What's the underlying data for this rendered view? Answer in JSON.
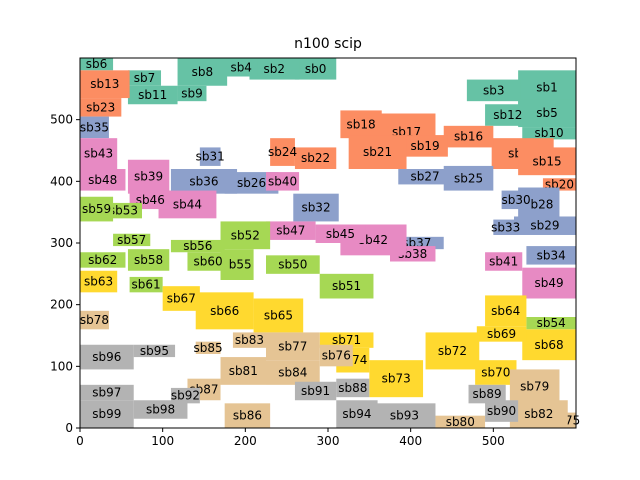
{
  "chart_data": {
    "type": "rectangle_packing",
    "title": "n100 scip",
    "xlabel": "",
    "ylabel": "",
    "xlim": [
      0,
      600
    ],
    "ylim": [
      0,
      600
    ],
    "xticks": [
      0,
      100,
      200,
      300,
      400,
      500
    ],
    "yticks": [
      0,
      100,
      200,
      300,
      400,
      500
    ],
    "grid": false,
    "colors": {
      "teal": "#66c2a5",
      "orange": "#fc8d62",
      "blue": "#8da0cb",
      "pink": "#e78ac3",
      "green": "#a6d854",
      "yellow": "#ffd92f",
      "tan": "#e5c494",
      "gray": "#b3b3b3"
    },
    "rects": [
      {
        "label": "sb0",
        "x": 260,
        "y": 565,
        "w": 50,
        "h": 35,
        "color": "teal"
      },
      {
        "label": "sb1",
        "x": 530,
        "y": 525,
        "w": 70,
        "h": 55,
        "color": "teal"
      },
      {
        "label": "sb2",
        "x": 205,
        "y": 565,
        "w": 60,
        "h": 35,
        "color": "teal"
      },
      {
        "label": "sb3",
        "x": 468,
        "y": 530,
        "w": 65,
        "h": 35,
        "color": "teal"
      },
      {
        "label": "sb4",
        "x": 175,
        "y": 570,
        "w": 40,
        "h": 30,
        "color": "teal"
      },
      {
        "label": "sb5",
        "x": 530,
        "y": 488,
        "w": 70,
        "h": 45,
        "color": "teal"
      },
      {
        "label": "sb6",
        "x": 0,
        "y": 580,
        "w": 40,
        "h": 20,
        "color": "teal"
      },
      {
        "label": "sb7",
        "x": 58,
        "y": 555,
        "w": 40,
        "h": 25,
        "color": "teal"
      },
      {
        "label": "sb8",
        "x": 118,
        "y": 555,
        "w": 60,
        "h": 45,
        "color": "teal"
      },
      {
        "label": "sb9",
        "x": 118,
        "y": 530,
        "w": 35,
        "h": 25,
        "color": "teal"
      },
      {
        "label": "sb10",
        "x": 535,
        "y": 468,
        "w": 65,
        "h": 20,
        "color": "teal"
      },
      {
        "label": "sb11",
        "x": 58,
        "y": 525,
        "w": 60,
        "h": 30,
        "color": "teal"
      },
      {
        "label": "sb12",
        "x": 490,
        "y": 490,
        "w": 55,
        "h": 35,
        "color": "teal"
      },
      {
        "label": "sb13",
        "x": 0,
        "y": 535,
        "w": 60,
        "h": 45,
        "color": "orange"
      },
      {
        "label": "sb14",
        "x": 498,
        "y": 420,
        "w": 75,
        "h": 50,
        "color": "orange"
      },
      {
        "label": "sb15",
        "x": 530,
        "y": 410,
        "w": 70,
        "h": 45,
        "color": "orange"
      },
      {
        "label": "sb16",
        "x": 440,
        "y": 455,
        "w": 60,
        "h": 35,
        "color": "orange"
      },
      {
        "label": "sb17",
        "x": 360,
        "y": 450,
        "w": 70,
        "h": 60,
        "color": "orange"
      },
      {
        "label": "sb18",
        "x": 315,
        "y": 470,
        "w": 50,
        "h": 45,
        "color": "orange"
      },
      {
        "label": "sb19",
        "x": 390,
        "y": 440,
        "w": 55,
        "h": 35,
        "color": "orange"
      },
      {
        "label": "sb20",
        "x": 560,
        "y": 385,
        "w": 40,
        "h": 20,
        "color": "orange"
      },
      {
        "label": "sb21",
        "x": 325,
        "y": 420,
        "w": 70,
        "h": 55,
        "color": "orange"
      },
      {
        "label": "sb22",
        "x": 260,
        "y": 420,
        "w": 50,
        "h": 35,
        "color": "orange"
      },
      {
        "label": "sb23",
        "x": 0,
        "y": 505,
        "w": 50,
        "h": 30,
        "color": "orange"
      },
      {
        "label": "sb24",
        "x": 230,
        "y": 425,
        "w": 30,
        "h": 45,
        "color": "orange"
      },
      {
        "label": "sb25",
        "x": 440,
        "y": 385,
        "w": 60,
        "h": 40,
        "color": "blue"
      },
      {
        "label": "sb26",
        "x": 175,
        "y": 380,
        "w": 65,
        "h": 35,
        "color": "blue"
      },
      {
        "label": "sb27",
        "x": 385,
        "y": 395,
        "w": 65,
        "h": 25,
        "color": "blue"
      },
      {
        "label": "sb28",
        "x": 530,
        "y": 335,
        "w": 50,
        "h": 55,
        "color": "blue"
      },
      {
        "label": "sb29",
        "x": 525,
        "y": 313,
        "w": 75,
        "h": 30,
        "color": "blue"
      },
      {
        "label": "sb30",
        "x": 510,
        "y": 355,
        "w": 35,
        "h": 30,
        "color": "blue"
      },
      {
        "label": "sb31",
        "x": 145,
        "y": 425,
        "w": 25,
        "h": 30,
        "color": "blue"
      },
      {
        "label": "sb32",
        "x": 258,
        "y": 335,
        "w": 55,
        "h": 45,
        "color": "blue"
      },
      {
        "label": "sb33",
        "x": 500,
        "y": 313,
        "w": 30,
        "h": 25,
        "color": "blue"
      },
      {
        "label": "sb34",
        "x": 540,
        "y": 265,
        "w": 60,
        "h": 30,
        "color": "blue"
      },
      {
        "label": "sb35",
        "x": 0,
        "y": 470,
        "w": 35,
        "h": 35,
        "color": "blue"
      },
      {
        "label": "sb36",
        "x": 110,
        "y": 380,
        "w": 80,
        "h": 40,
        "color": "blue"
      },
      {
        "label": "sb37",
        "x": 375,
        "y": 290,
        "w": 65,
        "h": 20,
        "color": "blue"
      },
      {
        "label": "sb38",
        "x": 375,
        "y": 270,
        "w": 55,
        "h": 25,
        "color": "pink"
      },
      {
        "label": "sb39",
        "x": 58,
        "y": 380,
        "w": 50,
        "h": 55,
        "color": "pink"
      },
      {
        "label": "sb40",
        "x": 225,
        "y": 385,
        "w": 40,
        "h": 30,
        "color": "pink"
      },
      {
        "label": "sb41",
        "x": 490,
        "y": 255,
        "w": 45,
        "h": 30,
        "color": "pink"
      },
      {
        "label": "sb42",
        "x": 315,
        "y": 280,
        "w": 80,
        "h": 50,
        "color": "pink"
      },
      {
        "label": "sb43",
        "x": 0,
        "y": 420,
        "w": 45,
        "h": 50,
        "color": "pink"
      },
      {
        "label": "sb44",
        "x": 95,
        "y": 340,
        "w": 70,
        "h": 45,
        "color": "pink"
      },
      {
        "label": "sb45",
        "x": 285,
        "y": 300,
        "w": 60,
        "h": 30,
        "color": "pink"
      },
      {
        "label": "sb46",
        "x": 60,
        "y": 355,
        "w": 50,
        "h": 30,
        "color": "pink"
      },
      {
        "label": "sb47",
        "x": 225,
        "y": 305,
        "w": 60,
        "h": 30,
        "color": "pink"
      },
      {
        "label": "sb48",
        "x": 0,
        "y": 385,
        "w": 55,
        "h": 35,
        "color": "pink"
      },
      {
        "label": "sb49",
        "x": 535,
        "y": 210,
        "w": 65,
        "h": 50,
        "color": "pink"
      },
      {
        "label": "sb50",
        "x": 225,
        "y": 250,
        "w": 65,
        "h": 30,
        "color": "green"
      },
      {
        "label": "sb51",
        "x": 290,
        "y": 210,
        "w": 65,
        "h": 40,
        "color": "green"
      },
      {
        "label": "sb52",
        "x": 170,
        "y": 290,
        "w": 60,
        "h": 45,
        "color": "green"
      },
      {
        "label": "sb53",
        "x": 30,
        "y": 340,
        "w": 45,
        "h": 25,
        "color": "green"
      },
      {
        "label": "sb54",
        "x": 540,
        "y": 160,
        "w": 60,
        "h": 20,
        "color": "green"
      },
      {
        "label": "sb55",
        "x": 170,
        "y": 240,
        "w": 40,
        "h": 50,
        "color": "green"
      },
      {
        "label": "sb56",
        "x": 110,
        "y": 285,
        "w": 65,
        "h": 20,
        "color": "green"
      },
      {
        "label": "sb57",
        "x": 40,
        "y": 295,
        "w": 45,
        "h": 20,
        "color": "green"
      },
      {
        "label": "sb58",
        "x": 58,
        "y": 255,
        "w": 50,
        "h": 35,
        "color": "green"
      },
      {
        "label": "sb59",
        "x": 0,
        "y": 335,
        "w": 40,
        "h": 40,
        "color": "green"
      },
      {
        "label": "sb60",
        "x": 130,
        "y": 255,
        "w": 50,
        "h": 30,
        "color": "green"
      },
      {
        "label": "sb61",
        "x": 60,
        "y": 220,
        "w": 40,
        "h": 25,
        "color": "green"
      },
      {
        "label": "sb62",
        "x": 0,
        "y": 260,
        "w": 55,
        "h": 25,
        "color": "green"
      },
      {
        "label": "sb63",
        "x": 0,
        "y": 220,
        "w": 45,
        "h": 35,
        "color": "yellow"
      },
      {
        "label": "sb64",
        "x": 490,
        "y": 165,
        "w": 50,
        "h": 50,
        "color": "yellow"
      },
      {
        "label": "sb65",
        "x": 210,
        "y": 155,
        "w": 60,
        "h": 55,
        "color": "yellow"
      },
      {
        "label": "sb66",
        "x": 140,
        "y": 160,
        "w": 70,
        "h": 60,
        "color": "yellow"
      },
      {
        "label": "sb67",
        "x": 100,
        "y": 190,
        "w": 45,
        "h": 40,
        "color": "yellow"
      },
      {
        "label": "sb68",
        "x": 535,
        "y": 110,
        "w": 65,
        "h": 50,
        "color": "yellow"
      },
      {
        "label": "sb69",
        "x": 480,
        "y": 140,
        "w": 60,
        "h": 25,
        "color": "yellow"
      },
      {
        "label": "sb70",
        "x": 478,
        "y": 70,
        "w": 50,
        "h": 40,
        "color": "yellow"
      },
      {
        "label": "sb71",
        "x": 290,
        "y": 130,
        "w": 65,
        "h": 25,
        "color": "yellow"
      },
      {
        "label": "sb72",
        "x": 418,
        "y": 95,
        "w": 65,
        "h": 60,
        "color": "yellow"
      },
      {
        "label": "sb73",
        "x": 350,
        "y": 50,
        "w": 65,
        "h": 60,
        "color": "yellow"
      },
      {
        "label": "sb74",
        "x": 310,
        "y": 90,
        "w": 40,
        "h": 40,
        "color": "yellow"
      },
      {
        "label": "sb75",
        "x": 575,
        "y": 0,
        "w": 25,
        "h": 25,
        "color": "tan"
      },
      {
        "label": "sb76",
        "x": 290,
        "y": 100,
        "w": 40,
        "h": 35,
        "color": "tan"
      },
      {
        "label": "sb77",
        "x": 225,
        "y": 110,
        "w": 65,
        "h": 45,
        "color": "tan"
      },
      {
        "label": "sb78",
        "x": 0,
        "y": 160,
        "w": 35,
        "h": 30,
        "color": "tan"
      },
      {
        "label": "sb79",
        "x": 520,
        "y": 40,
        "w": 60,
        "h": 55,
        "color": "tan"
      },
      {
        "label": "sb80",
        "x": 430,
        "y": 0,
        "w": 60,
        "h": 20,
        "color": "tan"
      },
      {
        "label": "sb81",
        "x": 170,
        "y": 70,
        "w": 55,
        "h": 45,
        "color": "tan"
      },
      {
        "label": "sb82",
        "x": 520,
        "y": 0,
        "w": 70,
        "h": 45,
        "color": "tan"
      },
      {
        "label": "sb83",
        "x": 185,
        "y": 130,
        "w": 40,
        "h": 25,
        "color": "tan"
      },
      {
        "label": "sb84",
        "x": 225,
        "y": 70,
        "w": 65,
        "h": 40,
        "color": "tan"
      },
      {
        "label": "sb85",
        "x": 140,
        "y": 120,
        "w": 30,
        "h": 20,
        "color": "tan"
      },
      {
        "label": "sb86",
        "x": 175,
        "y": 0,
        "w": 55,
        "h": 40,
        "color": "tan"
      },
      {
        "label": "sb87",
        "x": 130,
        "y": 45,
        "w": 40,
        "h": 35,
        "color": "tan"
      },
      {
        "label": "sb88",
        "x": 310,
        "y": 50,
        "w": 40,
        "h": 30,
        "color": "gray"
      },
      {
        "label": "sb89",
        "x": 470,
        "y": 40,
        "w": 45,
        "h": 30,
        "color": "gray"
      },
      {
        "label": "sb90",
        "x": 490,
        "y": 10,
        "w": 40,
        "h": 35,
        "color": "gray"
      },
      {
        "label": "sb91",
        "x": 260,
        "y": 45,
        "w": 50,
        "h": 30,
        "color": "gray"
      },
      {
        "label": "sb92",
        "x": 110,
        "y": 40,
        "w": 35,
        "h": 25,
        "color": "gray"
      },
      {
        "label": "sb93",
        "x": 355,
        "y": 0,
        "w": 75,
        "h": 40,
        "color": "gray"
      },
      {
        "label": "sb94",
        "x": 310,
        "y": 0,
        "w": 50,
        "h": 45,
        "color": "gray"
      },
      {
        "label": "sb95",
        "x": 65,
        "y": 115,
        "w": 50,
        "h": 20,
        "color": "gray"
      },
      {
        "label": "sb96",
        "x": 0,
        "y": 95,
        "w": 65,
        "h": 40,
        "color": "gray"
      },
      {
        "label": "sb97",
        "x": 0,
        "y": 45,
        "w": 65,
        "h": 25,
        "color": "gray"
      },
      {
        "label": "sb98",
        "x": 65,
        "y": 15,
        "w": 65,
        "h": 30,
        "color": "gray"
      },
      {
        "label": "sb99",
        "x": 0,
        "y": 0,
        "w": 65,
        "h": 45,
        "color": "gray"
      }
    ]
  }
}
